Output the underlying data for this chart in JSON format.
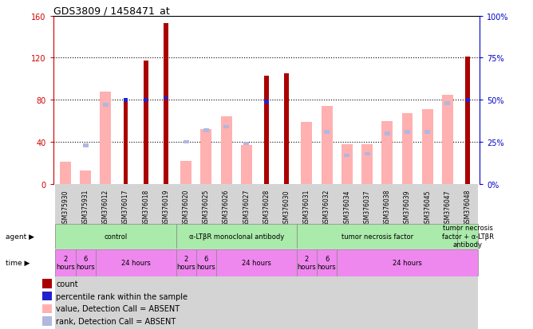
{
  "title": "GDS3809 / 1458471_at",
  "samples": [
    "GSM375930",
    "GSM375931",
    "GSM376012",
    "GSM376017",
    "GSM376018",
    "GSM376019",
    "GSM376020",
    "GSM376025",
    "GSM376026",
    "GSM376027",
    "GSM376028",
    "GSM376030",
    "GSM376031",
    "GSM376032",
    "GSM376034",
    "GSM376037",
    "GSM376038",
    "GSM376039",
    "GSM376045",
    "GSM376047",
    "GSM376048"
  ],
  "count": [
    null,
    null,
    null,
    78,
    117,
    153,
    null,
    null,
    null,
    null,
    103,
    105,
    null,
    null,
    null,
    null,
    null,
    null,
    null,
    null,
    121
  ],
  "count_rank_pct": [
    null,
    null,
    null,
    50,
    50,
    51,
    null,
    null,
    null,
    null,
    49,
    null,
    null,
    null,
    null,
    null,
    null,
    null,
    null,
    null,
    50
  ],
  "value_absent": [
    21,
    13,
    88,
    null,
    null,
    null,
    22,
    52,
    64,
    37,
    null,
    null,
    59,
    74,
    38,
    38,
    60,
    67,
    71,
    85,
    null
  ],
  "rank_absent_pct": [
    null,
    23,
    47,
    null,
    null,
    null,
    25,
    32,
    34,
    24,
    null,
    null,
    null,
    31,
    17,
    18,
    30,
    31,
    31,
    48,
    null
  ],
  "ylim_left": [
    0,
    160
  ],
  "ylim_right": [
    0,
    100
  ],
  "yticks_left": [
    0,
    40,
    80,
    120,
    160
  ],
  "ytick_labels_left": [
    "0",
    "40",
    "80",
    "120",
    "160"
  ],
  "ytick_labels_right": [
    "0%",
    "25%",
    "50%",
    "75%",
    "100%"
  ],
  "agent_groups": [
    {
      "label": "control",
      "start": 0,
      "end": 5
    },
    {
      "label": "α-LTβR monoclonal antibody",
      "start": 6,
      "end": 11
    },
    {
      "label": "tumor necrosis factor",
      "start": 12,
      "end": 19
    },
    {
      "label": "tumor necrosis\nfactor + α-LTβR\nantibody",
      "start": 20,
      "end": 20
    }
  ],
  "time_groups": [
    {
      "label": "2\nhours",
      "start": 0,
      "end": 0
    },
    {
      "label": "6\nhours",
      "start": 1,
      "end": 1
    },
    {
      "label": "24 hours",
      "start": 2,
      "end": 5
    },
    {
      "label": "2\nhours",
      "start": 6,
      "end": 6
    },
    {
      "label": "6\nhours",
      "start": 7,
      "end": 7
    },
    {
      "label": "24 hours",
      "start": 8,
      "end": 11
    },
    {
      "label": "2\nhours",
      "start": 12,
      "end": 12
    },
    {
      "label": "6\nhours",
      "start": 13,
      "end": 13
    },
    {
      "label": "24 hours",
      "start": 14,
      "end": 20
    }
  ],
  "count_color": "#aa0000",
  "rank_color": "#2222cc",
  "value_absent_color": "#ffb0b0",
  "rank_absent_color": "#b0b8e0",
  "agent_color": "#aaeaaa",
  "time_color": "#ee88ee",
  "sample_bg_color": "#d4d4d4",
  "left_axis_color": "#cc0000",
  "right_axis_color": "#0000cc",
  "legend_items": [
    {
      "label": "count",
      "color": "#aa0000",
      "marker": "square"
    },
    {
      "label": "percentile rank within the sample",
      "color": "#2222cc",
      "marker": "square"
    },
    {
      "label": "value, Detection Call = ABSENT",
      "color": "#ffb0b0",
      "marker": "square"
    },
    {
      "label": "rank, Detection Call = ABSENT",
      "color": "#b0b8e0",
      "marker": "square"
    }
  ]
}
